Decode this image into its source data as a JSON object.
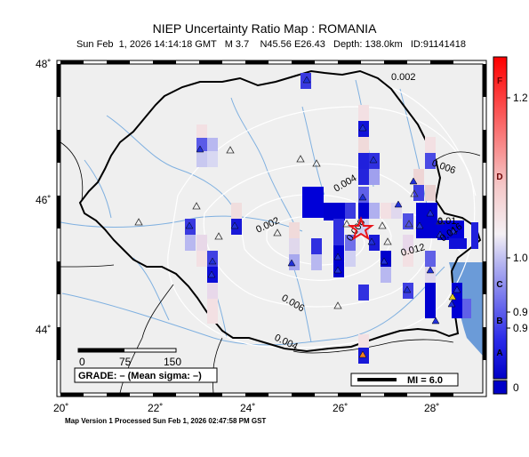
{
  "title": "NIEP Uncertainty Ratio Map : ROMANIA",
  "subtitle": "Sun Feb  1, 2026 14:14:18 GMT   M 3.7    N45.56 E26.43   Depth: 138.0km   ID:91141418",
  "footer": "Map Version 1 Processed Sun Feb  1, 2026 02:47:58 PM GST",
  "axes": {
    "lat_labels": [
      "48˚",
      "46˚",
      "44˚"
    ],
    "lon_labels": [
      "20˚",
      "22˚",
      "24˚",
      "26˚",
      "28˚"
    ]
  },
  "contours": [
    "0.002",
    "0.006",
    "0.004",
    "0.002",
    "0.006",
    "0.004",
    "0.008",
    "0.01",
    "0.012",
    "0.016"
  ],
  "scalebar": {
    "labels": [
      "0",
      "75",
      "150"
    ]
  },
  "grade_box": "GRADE: – (Mean sigma: –)",
  "mi_legend": "MI = 6.0",
  "colorbar": {
    "grades": [
      "F",
      "D",
      "C",
      "B",
      "A"
    ],
    "values": [
      "1.2",
      "1.0",
      "0.9",
      "0.9",
      "0"
    ]
  },
  "epicenter": {
    "lat": 45.56,
    "lon": 26.43
  },
  "colors": {
    "water": "#6b9bd8",
    "land": "#efefef",
    "border": "#000000",
    "star": "#e8141a"
  }
}
